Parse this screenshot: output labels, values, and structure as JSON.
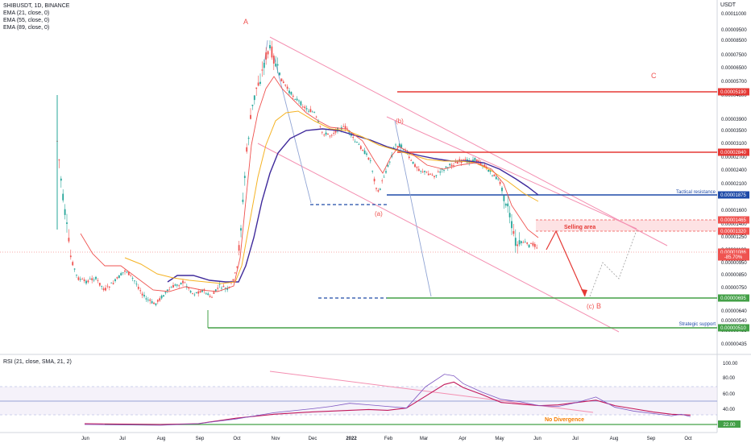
{
  "legend": {
    "symbol": "SHIBUSDT, 1D, BINANCE",
    "ema1": "EMA (21, close, 0)",
    "ema2": "EMA (55, close, 0)",
    "ema3": "EMA (89, close, 0)"
  },
  "currency": "USDT",
  "rsi_legend": "RSI (21, close, SMA, 21, 2)",
  "colors": {
    "up": "#26a69a",
    "down": "#ef5350",
    "ema21": "#ef5350",
    "ema55": "#f5b324",
    "ema89": "#3f2a9b",
    "channel": "#f48fb1",
    "resistance_red": "#e53935",
    "resistance_blue": "#1e4aa8",
    "support_green": "#43a047",
    "rsi": "#7e57c2",
    "rsi_ma": "#c2185b"
  },
  "chart_data": [
    {
      "type": "candlestick",
      "symbol": "SHIBUSDT",
      "x_tick_labels": [
        "Jun",
        "Jul",
        "Aug",
        "Sep",
        "Oct",
        "Nov",
        "Dec",
        "2022",
        "Feb",
        "Mar",
        "Apr",
        "May",
        "Jun",
        "Jul",
        "Aug",
        "Sep",
        "Oct"
      ],
      "y_tick_labels": [
        "0.00011000",
        "0.00009500",
        "0.00008500",
        "0.00007500",
        "0.00006500",
        "0.00005700",
        "0.00004800",
        "0.00003900",
        "0.00003500",
        "0.00003100",
        "0.00002700",
        "0.00002400",
        "0.00002100",
        "0.00001800",
        "0.00001600",
        "0.00001400",
        "0.00001250",
        "0.00001100",
        "0.00000950",
        "0.00000850",
        "0.00000750",
        "0.00000640",
        "0.00000540",
        "0.00000485",
        "0.00000435"
      ],
      "price_labels": [
        {
          "value": "0.00005190",
          "color": "#e53935"
        },
        {
          "value": "0.00002840",
          "color": "#e53935"
        },
        {
          "value": "0.00001875",
          "color": "#1e4aa8"
        },
        {
          "value": "0.00001465",
          "color": "#ef5350"
        },
        {
          "value": "0.00001320",
          "color": "#ef5350"
        },
        {
          "value": "0.00001086",
          "color": "#ef5350"
        },
        {
          "value": "-85.70%",
          "color": "#ef5350"
        },
        {
          "value": "0.00000695",
          "color": "#43a047"
        },
        {
          "value": "0.00000510",
          "color": "#43a047"
        }
      ],
      "annotations": {
        "wave_a": "A",
        "wave_b": "(b)",
        "wave_a_small": "(a)",
        "wave_c_small": "(c)",
        "wave_B": "B",
        "wave_C": "C",
        "selling_area": "Selling area",
        "tactical_resistance": "Tactical resistance",
        "strategic_support": "Strategic support"
      },
      "last_price": 1.086e-05,
      "change_pct": -85.7
    },
    {
      "type": "line",
      "title": "RSI (21, close, SMA, 21, 2)",
      "y_tick_labels": [
        "100.00",
        "80.00",
        "60.00",
        "40.00",
        "20.00"
      ],
      "ylim": [
        10,
        105
      ],
      "levels": [
        70,
        50,
        30
      ],
      "support_level": {
        "value": 22,
        "label": "22.00"
      },
      "note": "No Divergence",
      "rsi_points": [
        [
          1,
          22
        ],
        [
          3,
          21
        ],
        [
          4,
          23
        ],
        [
          5,
          29
        ],
        [
          5.5,
          33
        ],
        [
          6,
          37
        ],
        [
          7,
          42
        ],
        [
          7.5,
          45
        ],
        [
          8,
          49
        ],
        [
          8.5,
          47
        ],
        [
          9,
          45
        ],
        [
          9.5,
          43
        ],
        [
          10,
          70
        ],
        [
          10.5,
          86
        ],
        [
          10.75,
          84
        ],
        [
          11,
          74
        ],
        [
          11.5,
          63
        ],
        [
          12,
          54
        ],
        [
          12.5,
          51
        ],
        [
          13,
          46
        ],
        [
          13.5,
          45
        ],
        [
          14,
          50
        ],
        [
          14.5,
          57
        ],
        [
          15,
          44
        ],
        [
          15.5,
          39
        ],
        [
          16,
          36
        ],
        [
          16.5,
          33
        ],
        [
          16.75,
          35
        ],
        [
          17,
          32
        ]
      ],
      "rsi_ma_points": [
        [
          1,
          23
        ],
        [
          3,
          22
        ],
        [
          4,
          23
        ],
        [
          5,
          30
        ],
        [
          6,
          35
        ],
        [
          7,
          38
        ],
        [
          8,
          40
        ],
        [
          8.5,
          41
        ],
        [
          9,
          40
        ],
        [
          9.5,
          43
        ],
        [
          10,
          58
        ],
        [
          10.5,
          73
        ],
        [
          10.75,
          76
        ],
        [
          11,
          69
        ],
        [
          11.5,
          60
        ],
        [
          12,
          50
        ],
        [
          12.5,
          48
        ],
        [
          13,
          46
        ],
        [
          13.5,
          47
        ],
        [
          14,
          50
        ],
        [
          14.5,
          53
        ],
        [
          15,
          46
        ],
        [
          15.5,
          42
        ],
        [
          16,
          38
        ],
        [
          16.5,
          35
        ],
        [
          17,
          34
        ]
      ]
    }
  ]
}
